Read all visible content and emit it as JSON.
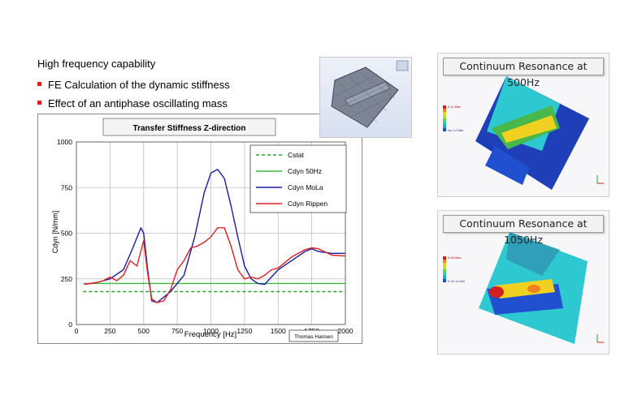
{
  "heading": "High frequency capability",
  "bullets": [
    "FE Calculation of the dynamic stiffness",
    "Effect of an antiphase oscillating mass"
  ],
  "chart_data": {
    "type": "line",
    "title": "Transfer Stiffness Z-direction",
    "xlabel": "Frequency [Hz]",
    "ylabel": "Cdyn [N/mm]",
    "xlim": [
      0,
      2000
    ],
    "ylim": [
      0,
      1000
    ],
    "xticks": [
      0,
      250,
      500,
      750,
      1000,
      1250,
      1500,
      1750,
      2000
    ],
    "yticks": [
      0,
      250,
      500,
      750,
      1000
    ],
    "grid": true,
    "legend_position": "top-right",
    "credit": "Thomas Hansen",
    "series": [
      {
        "name": "Cstat",
        "color": "#22a822",
        "dashed": true,
        "x": [
          50,
          2000
        ],
        "y": [
          180,
          180
        ]
      },
      {
        "name": "Cdyn 50Hz",
        "color": "#3cb83c",
        "dashed": false,
        "x": [
          50,
          2000
        ],
        "y": [
          225,
          225
        ]
      },
      {
        "name": "Cdyn MoLa",
        "color": "#1a1aa8",
        "dashed": false,
        "x": [
          60,
          150,
          250,
          350,
          420,
          480,
          500,
          530,
          560,
          600,
          650,
          700,
          800,
          880,
          950,
          1000,
          1050,
          1100,
          1150,
          1200,
          1250,
          1300,
          1350,
          1400,
          1500,
          1600,
          1700,
          1750,
          1800,
          1900,
          2000
        ],
        "y": [
          220,
          230,
          250,
          300,
          420,
          530,
          500,
          300,
          130,
          120,
          150,
          180,
          270,
          480,
          720,
          830,
          850,
          800,
          650,
          480,
          320,
          250,
          225,
          220,
          300,
          350,
          400,
          415,
          400,
          390,
          390
        ]
      },
      {
        "name": "Cdyn Rippen",
        "color": "#e02020",
        "dashed": false,
        "x": [
          60,
          150,
          200,
          250,
          300,
          350,
          400,
          450,
          500,
          530,
          560,
          600,
          650,
          700,
          750,
          800,
          850,
          900,
          950,
          1000,
          1050,
          1100,
          1150,
          1200,
          1250,
          1300,
          1350,
          1400,
          1450,
          1500,
          1600,
          1700,
          1750,
          1800,
          1900,
          2000
        ],
        "y": [
          220,
          230,
          240,
          260,
          240,
          270,
          350,
          320,
          460,
          280,
          140,
          120,
          130,
          190,
          300,
          350,
          420,
          430,
          450,
          480,
          530,
          530,
          430,
          300,
          250,
          260,
          250,
          270,
          300,
          310,
          370,
          410,
          420,
          415,
          380,
          375
        ]
      }
    ]
  },
  "panels": [
    {
      "title": "Continuum Resonance at 500Hz",
      "scale_max": "0.11 Max",
      "scale_min": "No 1.0 Min"
    },
    {
      "title": "Continuum Resonance at 1050Hz",
      "scale_max": "0.06 Max",
      "scale_min": "0.7e-11 Min"
    }
  ],
  "colors": {
    "accent_red": "#e02020",
    "contour_blue": "#1e3fb8",
    "contour_cyan": "#2ec8d0",
    "contour_yellow": "#f0d020"
  }
}
